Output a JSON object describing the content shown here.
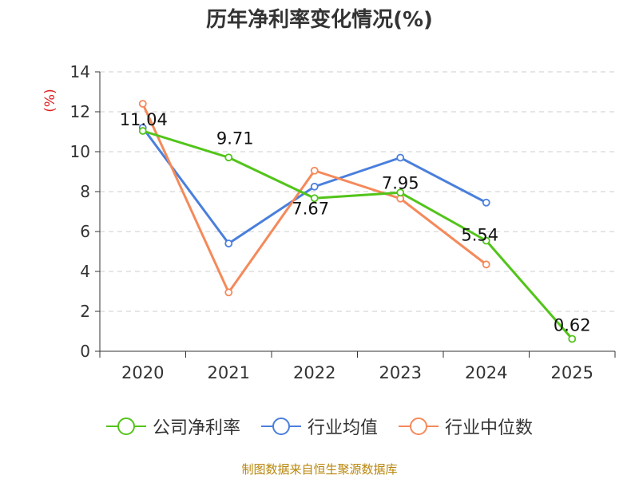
{
  "chart_data": {
    "type": "line",
    "title": "历年净利率变化情况(%)",
    "ylabel": "(%)",
    "xlabel": "",
    "categories": [
      "2020",
      "2021",
      "2022",
      "2023",
      "2024",
      "2025"
    ],
    "ylim": [
      0,
      14
    ],
    "yticks": [
      0,
      2,
      4,
      6,
      8,
      10,
      12,
      14
    ],
    "grid": true,
    "legend_position": "bottom",
    "series": [
      {
        "name": "公司净利率",
        "color": "#52c41a",
        "values": [
          11.04,
          9.71,
          7.67,
          7.95,
          5.54,
          0.62
        ],
        "labels": [
          "11.04",
          "9.71",
          "7.67",
          "7.95",
          "5.54",
          "0.62"
        ]
      },
      {
        "name": "行业均值",
        "color": "#4a7fdc",
        "values": [
          11.2,
          5.4,
          8.25,
          9.7,
          7.45,
          null
        ],
        "labels": []
      },
      {
        "name": "行业中位数",
        "color": "#f5895a",
        "values": [
          12.4,
          2.95,
          9.05,
          7.65,
          4.35,
          null
        ],
        "labels": []
      }
    ]
  },
  "source_note": "制图数据来自恒生聚源数据库"
}
